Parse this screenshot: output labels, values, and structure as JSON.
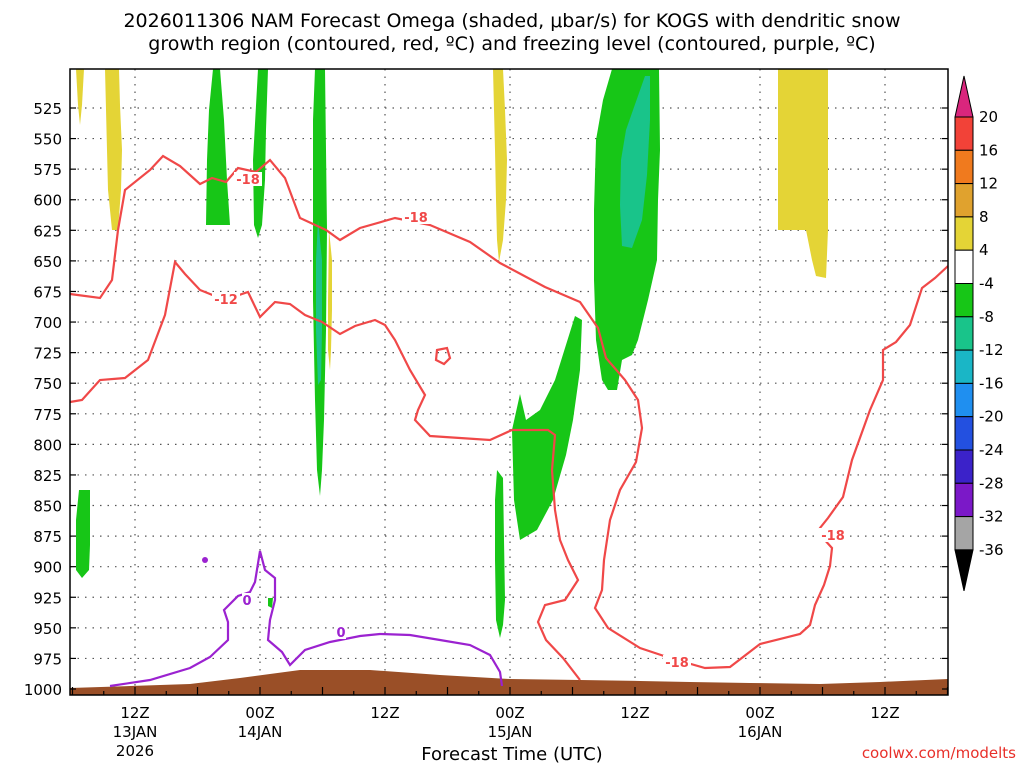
{
  "title": {
    "line1": "2026011306 NAM Forecast Omega (shaded, μbar/s) for KOGS with dendritic snow",
    "line2": "growth region (contoured, red, ºC) and freezing level (contoured, purple, ºC)"
  },
  "credit": "coolwx.com/modelts",
  "chart_data": {
    "type": "heatmap",
    "xlabel": "Forecast Time (UTC)",
    "x_range_hours": [
      0,
      84
    ],
    "y_range_mb": [
      500,
      1000
    ],
    "y_ticks": [
      525,
      550,
      575,
      600,
      625,
      650,
      675,
      700,
      725,
      750,
      775,
      800,
      825,
      850,
      875,
      900,
      925,
      950,
      975,
      1000
    ],
    "x_ticks": [
      {
        "hour": 6,
        "label": "12Z",
        "sub": "13JAN",
        "sub2": "2026"
      },
      {
        "hour": 18,
        "label": "00Z",
        "sub": "14JAN",
        "sub2": ""
      },
      {
        "hour": 30,
        "label": "12Z",
        "sub": "",
        "sub2": ""
      },
      {
        "hour": 42,
        "label": "00Z",
        "sub": "15JAN",
        "sub2": ""
      },
      {
        "hour": 54,
        "label": "12Z",
        "sub": "",
        "sub2": ""
      },
      {
        "hour": 66,
        "label": "00Z",
        "sub": "16JAN",
        "sub2": ""
      },
      {
        "hour": 78,
        "label": "12Z",
        "sub": "",
        "sub2": ""
      }
    ],
    "colorbar": {
      "levels": [
        20,
        16,
        12,
        8,
        4,
        -4,
        -8,
        -12,
        -16,
        -20,
        -24,
        -28,
        -32,
        -36
      ],
      "colors": [
        "#d9267d",
        "#f24238",
        "#f07a1e",
        "#e0a22e",
        "#e4d436",
        "#ffffff",
        "#17c617",
        "#19c48a",
        "#1ab6c6",
        "#1f8ff0",
        "#2350e0",
        "#3b22c9",
        "#7b18c8",
        "#a5a5a5",
        "#000000"
      ]
    },
    "contour_labels": {
      "red": [
        {
          "text": "-18",
          "x": 248,
          "y": 181
        },
        {
          "text": "-18",
          "x": 416,
          "y": 219
        },
        {
          "text": "-12",
          "x": 226,
          "y": 301
        },
        {
          "text": "-18",
          "x": 833,
          "y": 537
        },
        {
          "text": "-18",
          "x": 677,
          "y": 664
        }
      ],
      "purple": [
        {
          "text": "0",
          "x": 247,
          "y": 602
        },
        {
          "text": "0",
          "x": 341,
          "y": 634
        }
      ]
    },
    "colors": {
      "dsgz": "#f04848",
      "freezing": "#9b22d0",
      "ground": "#9a4f27",
      "green": "#17c617",
      "teal": "#19c48a",
      "yellow": "#e4d436"
    }
  }
}
